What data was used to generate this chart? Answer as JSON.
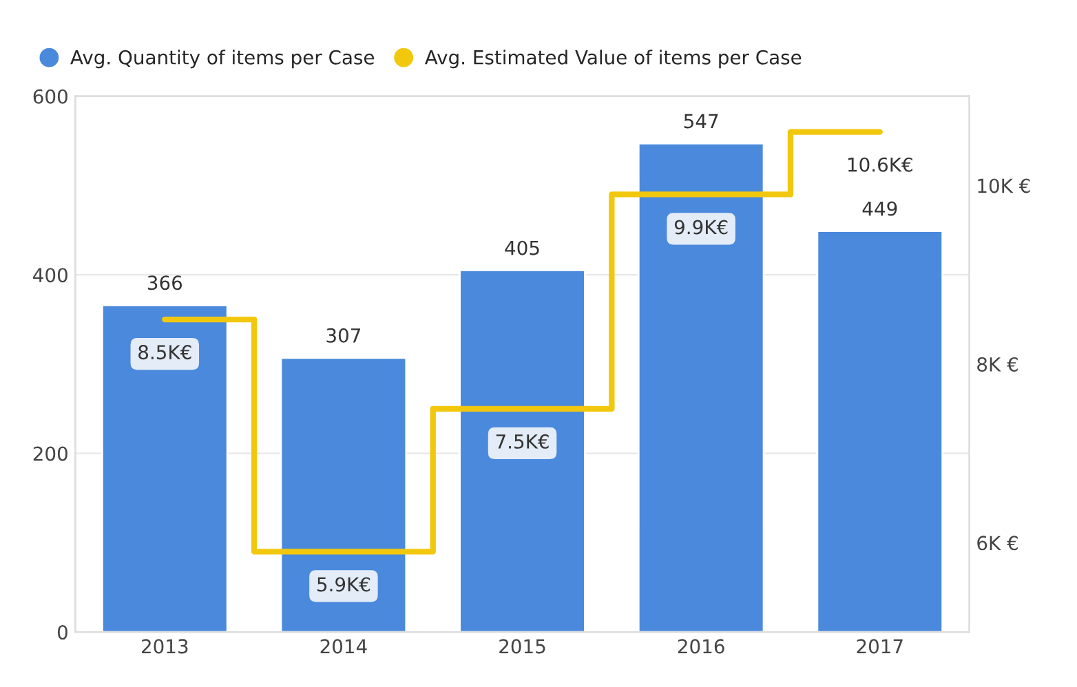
{
  "chart_data": {
    "type": "bar",
    "categories": [
      "2013",
      "2014",
      "2015",
      "2016",
      "2017"
    ],
    "series": [
      {
        "name": "Avg. Quantity of items per Case",
        "color": "#4a89dc",
        "values": [
          366,
          307,
          405,
          547,
          449
        ],
        "value_labels": [
          "366",
          "307",
          "405",
          "547",
          "449"
        ]
      },
      {
        "name": "Avg. Estimated Value of items per Case",
        "type": "step",
        "axis": "y2",
        "color": "#f2c80f",
        "values": [
          8500,
          5900,
          7500,
          9900,
          10600
        ],
        "value_labels": [
          "8.5K€",
          "5.9K€",
          "7.5K€",
          "9.9K€",
          "10.6K€"
        ]
      }
    ],
    "ylim": [
      0,
      600
    ],
    "yticks": [
      0,
      200,
      400,
      600
    ],
    "y2lim": [
      5000,
      11000
    ],
    "y2ticks": [
      {
        "value": 6000,
        "label": "6K €"
      },
      {
        "value": 8000,
        "label": "8K €"
      },
      {
        "value": 10000,
        "label": "10K €"
      }
    ],
    "grid": "y",
    "legend": "top left"
  }
}
